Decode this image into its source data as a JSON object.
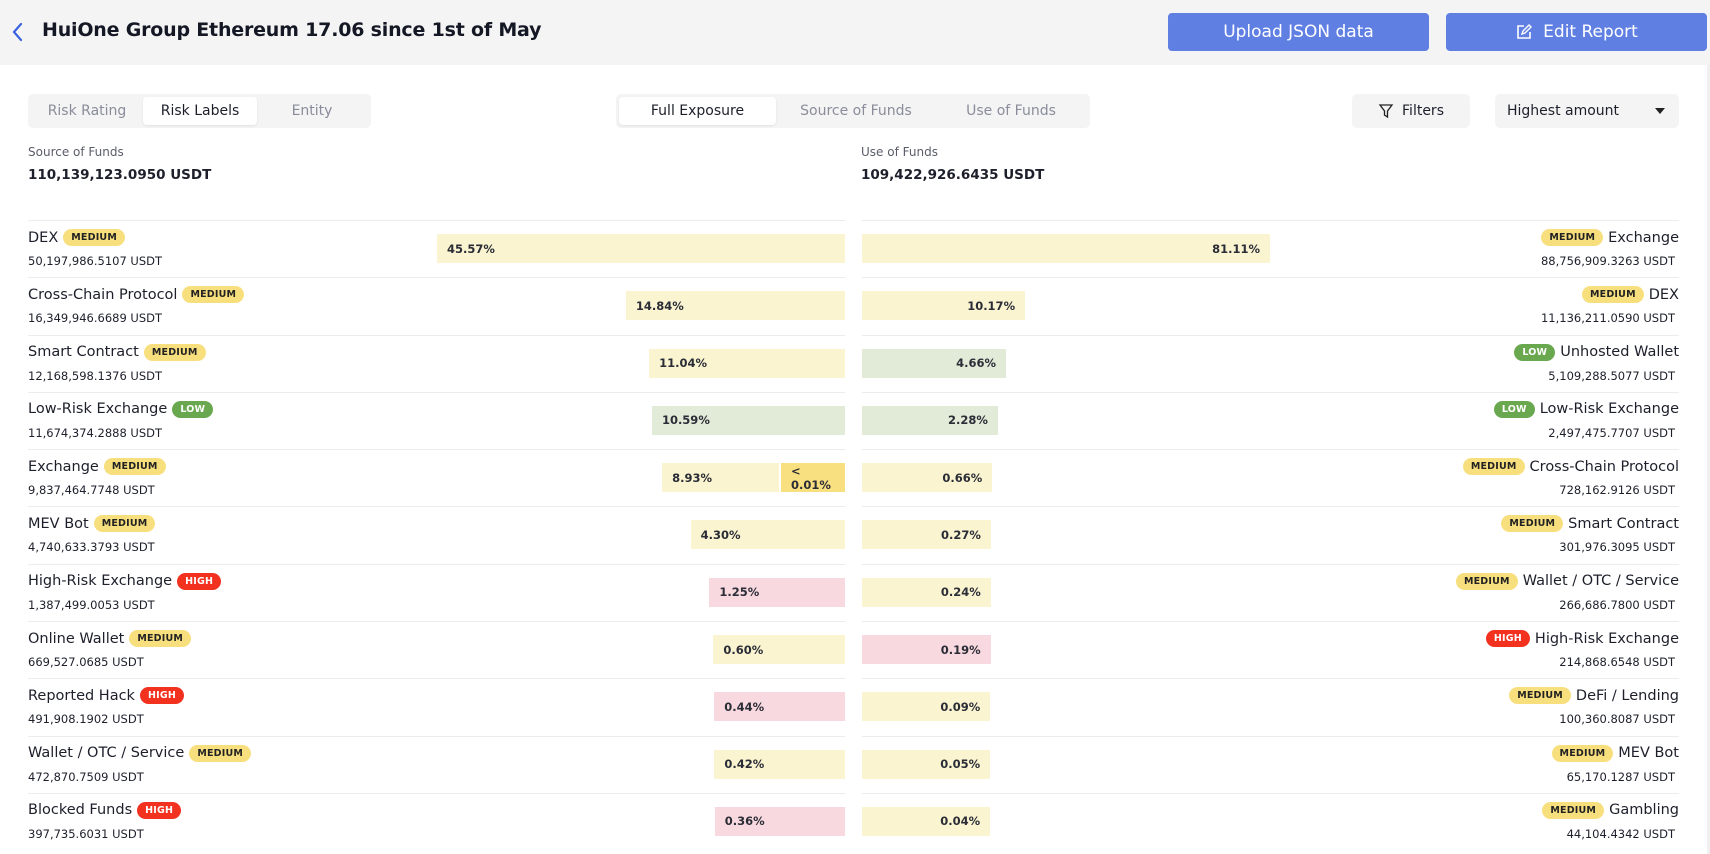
{
  "header": {
    "title": "HuiOne Group Ethereum 17.06 since 1st of May",
    "upload_label": "Upload JSON data",
    "edit_label": "Edit Report",
    "accent": "#5f7fe3"
  },
  "view_tabs": [
    {
      "label": "Risk Rating",
      "active": false
    },
    {
      "label": "Risk Labels",
      "active": true
    },
    {
      "label": "Entity",
      "active": false
    }
  ],
  "exposure_tabs": [
    {
      "label": "Full Exposure",
      "active": true
    },
    {
      "label": "Source of Funds",
      "active": false
    },
    {
      "label": "Use of Funds",
      "active": false
    }
  ],
  "filters_label": "Filters",
  "sort": {
    "selected": "Highest amount"
  },
  "source": {
    "label": "Source of Funds",
    "total": "110,139,123.0950 USDT",
    "rows": [
      {
        "name": "DEX",
        "risk": "MEDIUM",
        "amount": "50,197,986.5107 USDT",
        "pct": 45.57,
        "pct_label": "45.57%"
      },
      {
        "name": "Cross-Chain Protocol",
        "risk": "MEDIUM",
        "amount": "16,349,946.6689 USDT",
        "pct": 14.84,
        "pct_label": "14.84%"
      },
      {
        "name": "Smart Contract",
        "risk": "MEDIUM",
        "amount": "12,168,598.1376 USDT",
        "pct": 11.04,
        "pct_label": "11.04%"
      },
      {
        "name": "Low-Risk Exchange",
        "risk": "LOW",
        "amount": "11,674,374.2888 USDT",
        "pct": 10.59,
        "pct_label": "10.59%"
      },
      {
        "name": "Exchange",
        "risk": "MEDIUM",
        "amount": "9,837,464.7748 USDT",
        "pct": 8.93,
        "pct_label": "8.93%",
        "extra_label": "< 0.01%"
      },
      {
        "name": "MEV Bot",
        "risk": "MEDIUM",
        "amount": "4,740,633.3793 USDT",
        "pct": 4.3,
        "pct_label": "4.30%"
      },
      {
        "name": "High-Risk Exchange",
        "risk": "HIGH",
        "amount": "1,387,499.0053 USDT",
        "pct": 1.25,
        "pct_label": "1.25%"
      },
      {
        "name": "Online Wallet",
        "risk": "MEDIUM",
        "amount": "669,527.0685 USDT",
        "pct": 0.6,
        "pct_label": "0.60%"
      },
      {
        "name": "Reported Hack",
        "risk": "HIGH",
        "amount": "491,908.1902 USDT",
        "pct": 0.44,
        "pct_label": "0.44%"
      },
      {
        "name": "Wallet / OTC / Service",
        "risk": "MEDIUM",
        "amount": "472,870.7509 USDT",
        "pct": 0.42,
        "pct_label": "0.42%"
      },
      {
        "name": "Blocked Funds",
        "risk": "HIGH",
        "amount": "397,735.6031 USDT",
        "pct": 0.36,
        "pct_label": "0.36%"
      }
    ]
  },
  "use": {
    "label": "Use of Funds",
    "total": "109,422,926.6435 USDT",
    "rows": [
      {
        "name": "Exchange",
        "risk": "MEDIUM",
        "amount": "88,756,909.3263 USDT",
        "pct": 81.11,
        "pct_label": "81.11%"
      },
      {
        "name": "DEX",
        "risk": "MEDIUM",
        "amount": "11,136,211.0590 USDT",
        "pct": 10.17,
        "pct_label": "10.17%"
      },
      {
        "name": "Unhosted Wallet",
        "risk": "LOW",
        "amount": "5,109,288.5077 USDT",
        "pct": 4.66,
        "pct_label": "4.66%"
      },
      {
        "name": "Low-Risk Exchange",
        "risk": "LOW",
        "amount": "2,497,475.7707 USDT",
        "pct": 2.28,
        "pct_label": "2.28%"
      },
      {
        "name": "Cross-Chain Protocol",
        "risk": "MEDIUM",
        "amount": "728,162.9126 USDT",
        "pct": 0.66,
        "pct_label": "0.66%"
      },
      {
        "name": "Smart Contract",
        "risk": "MEDIUM",
        "amount": "301,976.3095 USDT",
        "pct": 0.27,
        "pct_label": "0.27%"
      },
      {
        "name": "Wallet / OTC / Service",
        "risk": "MEDIUM",
        "amount": "266,686.7800 USDT",
        "pct": 0.24,
        "pct_label": "0.24%"
      },
      {
        "name": "High-Risk Exchange",
        "risk": "HIGH",
        "amount": "214,868.6548 USDT",
        "pct": 0.19,
        "pct_label": "0.19%"
      },
      {
        "name": "DeFi / Lending",
        "risk": "MEDIUM",
        "amount": "100,360.8087 USDT",
        "pct": 0.09,
        "pct_label": "0.09%"
      },
      {
        "name": "MEV Bot",
        "risk": "MEDIUM",
        "amount": "65,170.1287 USDT",
        "pct": 0.05,
        "pct_label": "0.05%"
      },
      {
        "name": "Gambling",
        "risk": "MEDIUM",
        "amount": "44,104.4342 USDT",
        "pct": 0.04,
        "pct_label": "0.04%"
      }
    ]
  },
  "risk_colors": {
    "MEDIUM": "#f8df7e",
    "LOW": "#6aa84f",
    "HIGH": "#f2311f"
  }
}
